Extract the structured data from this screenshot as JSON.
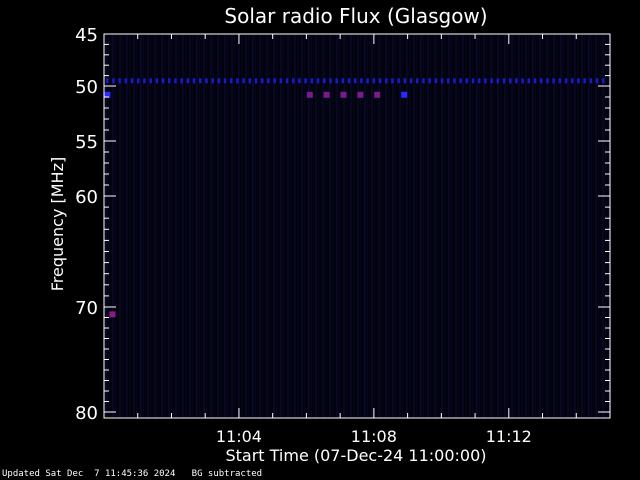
{
  "chart_data": {
    "type": "heatmap",
    "title": "Solar radio Flux (Glasgow)",
    "xlabel": "Start Time (07-Dec-24 11:00:00)",
    "ylabel": "Frequency [MHz]",
    "x_range_minutes": [
      0,
      15
    ],
    "x_ticks": [
      {
        "minute": 4,
        "label": "11:04"
      },
      {
        "minute": 8,
        "label": "11:08"
      },
      {
        "minute": 12,
        "label": "11:12"
      }
    ],
    "y_range_mhz": [
      45,
      80
    ],
    "y_ticks": [
      {
        "mhz": 45,
        "label": "45"
      },
      {
        "mhz": 50,
        "label": "50"
      },
      {
        "mhz": 55,
        "label": "55"
      },
      {
        "mhz": 60,
        "label": "60"
      },
      {
        "mhz": 70,
        "label": "70"
      },
      {
        "mhz": 80,
        "label": "80"
      }
    ],
    "background_color": "#03030f",
    "features": [
      {
        "kind": "band",
        "mhz": 49.5,
        "minute_start": 0,
        "minute_end": 15,
        "color": "#1a1acc",
        "intensity": "low"
      },
      {
        "kind": "spot",
        "mhz": 50.8,
        "minute": 6.1,
        "color": "#7a1a8c"
      },
      {
        "kind": "spot",
        "mhz": 50.8,
        "minute": 6.6,
        "color": "#7a1a8c"
      },
      {
        "kind": "spot",
        "mhz": 50.8,
        "minute": 7.1,
        "color": "#7a1a8c"
      },
      {
        "kind": "spot",
        "mhz": 50.8,
        "minute": 7.6,
        "color": "#7a1a8c"
      },
      {
        "kind": "spot",
        "mhz": 50.8,
        "minute": 8.1,
        "color": "#7a1a8c"
      },
      {
        "kind": "spot",
        "mhz": 50.8,
        "minute": 0.1,
        "color": "#2a2aff"
      },
      {
        "kind": "spot",
        "mhz": 50.8,
        "minute": 8.9,
        "color": "#2a2aff"
      },
      {
        "kind": "spot",
        "mhz": 70.7,
        "minute": 0.25,
        "color": "#8a1a8c"
      }
    ]
  },
  "footer": {
    "updated": "Updated Sat Dec  7 11:45:36 2024",
    "note": "BG subtracted"
  }
}
